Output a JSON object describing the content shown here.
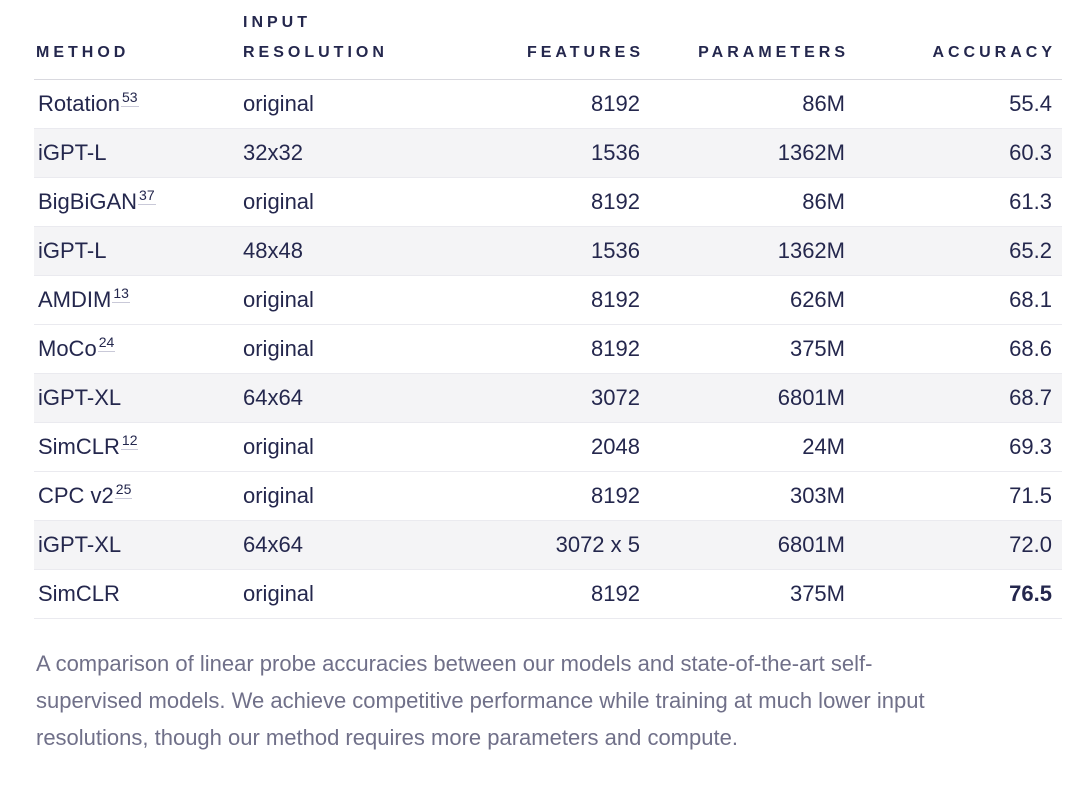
{
  "theme": {
    "ink": "#24274d",
    "stripe": "#f4f4f6",
    "row_border": "#eaeaef",
    "header_border": "#d9d9df",
    "caption_color": "#707089",
    "ref_underline": "#c9c9d8",
    "background": "#ffffff"
  },
  "table": {
    "columns": [
      {
        "label": "METHOD",
        "align": "left"
      },
      {
        "label": "INPUT RESOLUTION",
        "align": "left"
      },
      {
        "label": "FEATURES",
        "align": "right"
      },
      {
        "label": "PARAMETERS",
        "align": "right"
      },
      {
        "label": "ACCURACY",
        "align": "right"
      }
    ],
    "rows": [
      {
        "method": "Rotation",
        "ref": "53",
        "input_resolution": "original",
        "features": "8192",
        "parameters": "86M",
        "accuracy": "55.4",
        "highlighted": false,
        "accuracy_bold": false
      },
      {
        "method": "iGPT-L",
        "ref": null,
        "input_resolution": "32x32",
        "features": "1536",
        "parameters": "1362M",
        "accuracy": "60.3",
        "highlighted": true,
        "accuracy_bold": false
      },
      {
        "method": "BigBiGAN",
        "ref": "37",
        "input_resolution": "original",
        "features": "8192",
        "parameters": "86M",
        "accuracy": "61.3",
        "highlighted": false,
        "accuracy_bold": false
      },
      {
        "method": "iGPT-L",
        "ref": null,
        "input_resolution": "48x48",
        "features": "1536",
        "parameters": "1362M",
        "accuracy": "65.2",
        "highlighted": true,
        "accuracy_bold": false
      },
      {
        "method": "AMDIM",
        "ref": "13",
        "input_resolution": "original",
        "features": "8192",
        "parameters": "626M",
        "accuracy": "68.1",
        "highlighted": false,
        "accuracy_bold": false
      },
      {
        "method": "MoCo",
        "ref": "24",
        "input_resolution": "original",
        "features": "8192",
        "parameters": "375M",
        "accuracy": "68.6",
        "highlighted": false,
        "accuracy_bold": false
      },
      {
        "method": "iGPT-XL",
        "ref": null,
        "input_resolution": "64x64",
        "features": "3072",
        "parameters": "6801M",
        "accuracy": "68.7",
        "highlighted": true,
        "accuracy_bold": false
      },
      {
        "method": "SimCLR",
        "ref": "12",
        "input_resolution": "original",
        "features": "2048",
        "parameters": "24M",
        "accuracy": "69.3",
        "highlighted": false,
        "accuracy_bold": false
      },
      {
        "method": "CPC v2",
        "ref": "25",
        "input_resolution": "original",
        "features": "8192",
        "parameters": "303M",
        "accuracy": "71.5",
        "highlighted": false,
        "accuracy_bold": false
      },
      {
        "method": "iGPT-XL",
        "ref": null,
        "input_resolution": "64x64",
        "features": "3072 x 5",
        "parameters": "6801M",
        "accuracy": "72.0",
        "highlighted": true,
        "accuracy_bold": false
      },
      {
        "method": "SimCLR",
        "ref": null,
        "input_resolution": "original",
        "features": "8192",
        "parameters": "375M",
        "accuracy": "76.5",
        "highlighted": false,
        "accuracy_bold": true
      }
    ]
  },
  "chart_data": {
    "type": "table",
    "columns": [
      "METHOD",
      "INPUT RESOLUTION",
      "FEATURES",
      "PARAMETERS",
      "ACCURACY"
    ],
    "rows": [
      [
        "Rotation^53",
        "original",
        "8192",
        "86M",
        "55.4"
      ],
      [
        "iGPT-L",
        "32x32",
        "1536",
        "1362M",
        "60.3"
      ],
      [
        "BigBiGAN^37",
        "original",
        "8192",
        "86M",
        "61.3"
      ],
      [
        "iGPT-L",
        "48x48",
        "1536",
        "1362M",
        "65.2"
      ],
      [
        "AMDIM^13",
        "original",
        "8192",
        "626M",
        "68.1"
      ],
      [
        "MoCo^24",
        "original",
        "8192",
        "375M",
        "68.6"
      ],
      [
        "iGPT-XL",
        "64x64",
        "3072",
        "6801M",
        "68.7"
      ],
      [
        "SimCLR^12",
        "original",
        "2048",
        "24M",
        "69.3"
      ],
      [
        "CPC v2^25",
        "original",
        "8192",
        "303M",
        "71.5"
      ],
      [
        "iGPT-XL",
        "64x64",
        "3072 x 5",
        "6801M",
        "72.0"
      ],
      [
        "SimCLR",
        "original",
        "8192",
        "375M",
        "76.5"
      ]
    ]
  },
  "caption": "A comparison of linear probe accuracies between our models and state-of-the-art self-supervised models. We achieve competitive performance while training at much lower input resolutions, though our method requires more parameters and compute."
}
